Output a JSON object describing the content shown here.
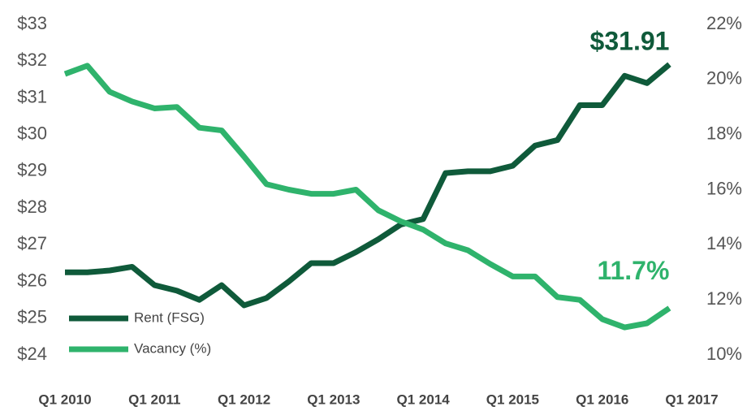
{
  "chart_data": {
    "type": "line",
    "categories": [
      "Q1 2010",
      null,
      null,
      null,
      "Q1 2011",
      null,
      null,
      null,
      "Q1 2012",
      null,
      null,
      null,
      "Q1 2013",
      null,
      null,
      null,
      "Q1 2014",
      null,
      null,
      null,
      "Q1 2015",
      null,
      null,
      null,
      "Q1 2016",
      null,
      null,
      null,
      "Q1 2017"
    ],
    "series": [
      {
        "name": "Rent (FSG)",
        "color": "#0f5a3a",
        "values": [
          26.25,
          26.25,
          26.3,
          26.4,
          25.9,
          25.75,
          25.5,
          25.9,
          25.35,
          25.55,
          26.0,
          26.5,
          26.5,
          26.8,
          27.15,
          27.55,
          27.7,
          28.95,
          29.0,
          29.0,
          29.15,
          29.7,
          29.85,
          30.8,
          30.8,
          31.6,
          31.4,
          31.91,
          null
        ],
        "value_labels": [
          null,
          null,
          null,
          null,
          null,
          null,
          null,
          null,
          null,
          null,
          null,
          null,
          null,
          null,
          null,
          null,
          null,
          null,
          null,
          null,
          null,
          null,
          null,
          null,
          null,
          null,
          null,
          "$31.91",
          null
        ]
      },
      {
        "name": "Vacancy (%)",
        "color": "#2fb36c",
        "axis": "y2",
        "values": [
          20.2,
          20.5,
          19.55,
          19.2,
          18.95,
          19.0,
          18.25,
          18.15,
          17.2,
          16.2,
          16.0,
          15.85,
          15.85,
          16.0,
          15.25,
          14.85,
          14.55,
          14.05,
          13.8,
          13.3,
          12.85,
          12.85,
          12.1,
          12.0,
          11.3,
          11.0,
          11.15,
          11.7,
          null
        ],
        "value_labels": [
          null,
          null,
          null,
          null,
          null,
          null,
          null,
          null,
          null,
          null,
          null,
          null,
          null,
          null,
          null,
          null,
          null,
          null,
          null,
          null,
          null,
          null,
          null,
          null,
          null,
          null,
          null,
          "11.7%",
          null
        ]
      }
    ],
    "ylim": [
      24,
      33
    ],
    "yticks": [
      {
        "value": 24,
        "label": "$24"
      },
      {
        "value": 25,
        "label": "$25"
      },
      {
        "value": 26,
        "label": "$26"
      },
      {
        "value": 27,
        "label": "$27"
      },
      {
        "value": 28,
        "label": "$28"
      },
      {
        "value": 29,
        "label": "$29"
      },
      {
        "value": 30,
        "label": "$30"
      },
      {
        "value": 31,
        "label": "$31"
      },
      {
        "value": 32,
        "label": "$32"
      },
      {
        "value": 33,
        "label": "$33"
      }
    ],
    "y2lim": [
      10,
      22
    ],
    "y2ticks": [
      {
        "value": 10,
        "label": "10%"
      },
      {
        "value": 12,
        "label": "12%"
      },
      {
        "value": 14,
        "label": "14%"
      },
      {
        "value": 16,
        "label": "16%"
      },
      {
        "value": 18,
        "label": "18%"
      },
      {
        "value": 20,
        "label": "20%"
      },
      {
        "value": 22,
        "label": "22%"
      }
    ],
    "grid": false,
    "legend": "lower left"
  }
}
